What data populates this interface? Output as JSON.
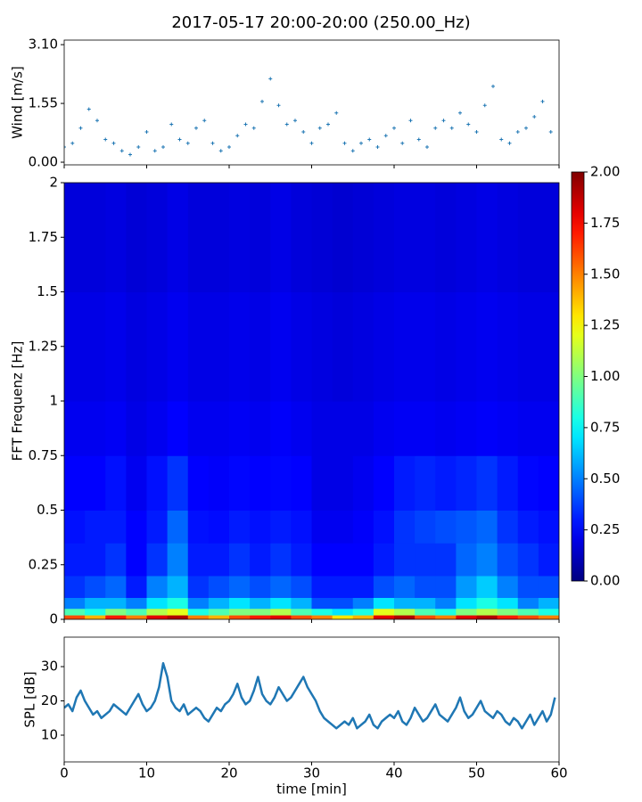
{
  "title": "2017-05-17 20:00-20:00 (250.00_Hz)",
  "chart_data": [
    {
      "type": "scatter",
      "ylabel": "Wind [m/s]",
      "color": "#1f77b4",
      "x": [
        0,
        1,
        2,
        3,
        4,
        5,
        6,
        7,
        8,
        9,
        10,
        11,
        12,
        13,
        14,
        15,
        16,
        17,
        18,
        19,
        20,
        21,
        22,
        23,
        24,
        25,
        26,
        27,
        28,
        29,
        30,
        31,
        32,
        33,
        34,
        35,
        36,
        37,
        38,
        39,
        40,
        41,
        42,
        43,
        44,
        45,
        46,
        47,
        48,
        49,
        50,
        51,
        52,
        53,
        54,
        55,
        56,
        57,
        58,
        59
      ],
      "values": [
        0.4,
        0.5,
        0.9,
        1.4,
        1.1,
        0.6,
        0.5,
        0.3,
        0.2,
        0.4,
        0.8,
        0.3,
        0.4,
        1.0,
        0.6,
        0.5,
        0.9,
        1.1,
        0.5,
        0.3,
        0.4,
        0.7,
        1.0,
        0.9,
        1.6,
        2.2,
        1.5,
        1.0,
        1.1,
        0.8,
        0.5,
        0.9,
        1.0,
        1.3,
        0.5,
        0.3,
        0.5,
        0.6,
        0.4,
        0.7,
        0.9,
        0.5,
        1.1,
        0.6,
        0.4,
        0.9,
        1.1,
        0.9,
        1.3,
        1.0,
        0.8,
        1.5,
        2.0,
        0.6,
        0.5,
        0.8,
        0.9,
        1.2,
        1.6,
        0.8
      ],
      "xlim": [
        0,
        60
      ],
      "xticks": [
        0,
        10,
        20,
        30,
        40,
        50,
        60
      ],
      "ylim": [
        -0.07,
        3.22
      ],
      "yticks": [
        {
          "value": 0,
          "label": "0.00"
        },
        {
          "value": 1.55,
          "label": "1.55"
        },
        {
          "value": 3.1,
          "label": "3.10"
        }
      ]
    },
    {
      "type": "heatmap",
      "ylabel": "FFT Frequenz [Hz]",
      "colormap": "jet",
      "x_bins": [
        0,
        2.5,
        5,
        7.5,
        10,
        12.5,
        15,
        17.5,
        20,
        22.5,
        25,
        27.5,
        30,
        32.5,
        35,
        37.5,
        40,
        42.5,
        45,
        47.5,
        50,
        52.5,
        55,
        57.5,
        60
      ],
      "y_bins": [
        0,
        0.02,
        0.05,
        0.1,
        0.2,
        0.35,
        0.5,
        0.75,
        1,
        1.5,
        2
      ],
      "values": [
        [
          1.6,
          1.4,
          1.7,
          1.5,
          1.8,
          1.9,
          1.5,
          1.4,
          1.6,
          1.7,
          1.8,
          1.6,
          1.5,
          1.3,
          1.4,
          1.8,
          1.9,
          1.6,
          1.5,
          1.8,
          1.9,
          1.7,
          1.6,
          1.5
        ],
        [
          0.9,
          0.8,
          1.0,
          0.9,
          1.1,
          1.2,
          0.8,
          0.9,
          1.0,
          1.0,
          1.1,
          0.9,
          0.8,
          0.7,
          0.8,
          1.2,
          1.1,
          0.9,
          0.8,
          1.0,
          1.1,
          1.0,
          0.9,
          0.8
        ],
        [
          0.5,
          0.6,
          0.6,
          0.5,
          0.7,
          0.8,
          0.5,
          0.6,
          0.7,
          0.6,
          0.7,
          0.6,
          0.4,
          0.4,
          0.5,
          0.7,
          0.6,
          0.6,
          0.5,
          0.7,
          0.8,
          0.7,
          0.5,
          0.6
        ],
        [
          0.35,
          0.4,
          0.45,
          0.3,
          0.5,
          0.6,
          0.35,
          0.4,
          0.45,
          0.4,
          0.45,
          0.4,
          0.3,
          0.3,
          0.3,
          0.4,
          0.45,
          0.4,
          0.4,
          0.55,
          0.65,
          0.5,
          0.4,
          0.4
        ],
        [
          0.3,
          0.3,
          0.35,
          0.25,
          0.35,
          0.5,
          0.3,
          0.3,
          0.35,
          0.3,
          0.35,
          0.3,
          0.25,
          0.25,
          0.25,
          0.3,
          0.35,
          0.35,
          0.35,
          0.45,
          0.5,
          0.4,
          0.35,
          0.3
        ],
        [
          0.28,
          0.3,
          0.3,
          0.25,
          0.3,
          0.45,
          0.28,
          0.27,
          0.3,
          0.28,
          0.3,
          0.28,
          0.22,
          0.22,
          0.24,
          0.28,
          0.35,
          0.38,
          0.4,
          0.42,
          0.45,
          0.35,
          0.3,
          0.28
        ],
        [
          0.25,
          0.25,
          0.28,
          0.22,
          0.28,
          0.35,
          0.25,
          0.24,
          0.26,
          0.25,
          0.26,
          0.25,
          0.2,
          0.2,
          0.22,
          0.25,
          0.3,
          0.32,
          0.3,
          0.32,
          0.35,
          0.3,
          0.26,
          0.25
        ],
        [
          0.22,
          0.22,
          0.23,
          0.2,
          0.22,
          0.25,
          0.22,
          0.22,
          0.23,
          0.22,
          0.24,
          0.22,
          0.2,
          0.2,
          0.2,
          0.22,
          0.23,
          0.23,
          0.22,
          0.23,
          0.24,
          0.23,
          0.22,
          0.22
        ],
        [
          0.2,
          0.2,
          0.21,
          0.19,
          0.2,
          0.22,
          0.2,
          0.2,
          0.21,
          0.2,
          0.22,
          0.2,
          0.19,
          0.18,
          0.19,
          0.2,
          0.21,
          0.21,
          0.2,
          0.21,
          0.22,
          0.21,
          0.2,
          0.2
        ],
        [
          0.18,
          0.18,
          0.19,
          0.17,
          0.18,
          0.2,
          0.18,
          0.18,
          0.19,
          0.18,
          0.2,
          0.18,
          0.17,
          0.16,
          0.17,
          0.18,
          0.19,
          0.19,
          0.18,
          0.19,
          0.2,
          0.19,
          0.18,
          0.18
        ]
      ],
      "xlim": [
        0,
        60
      ],
      "xticks": [
        0,
        10,
        20,
        30,
        40,
        50,
        60
      ],
      "ylim": [
        0,
        2
      ],
      "yticks": [
        0,
        0.25,
        0.5,
        0.75,
        1,
        1.25,
        1.5,
        1.75,
        2
      ],
      "clim": [
        0,
        2
      ],
      "cticks": [
        {
          "value": 0,
          "label": "0.00"
        },
        {
          "value": 0.25,
          "label": "0.25"
        },
        {
          "value": 0.5,
          "label": "0.50"
        },
        {
          "value": 0.75,
          "label": "0.75"
        },
        {
          "value": 1,
          "label": "1.00"
        },
        {
          "value": 1.25,
          "label": "1.25"
        },
        {
          "value": 1.5,
          "label": "1.50"
        },
        {
          "value": 1.75,
          "label": "1.75"
        },
        {
          "value": 2,
          "label": "2.00"
        }
      ]
    },
    {
      "type": "line",
      "ylabel": "SPL [dB]",
      "xlabel": "time [min]",
      "color": "#1f77b4",
      "x": [
        0,
        0.5,
        1,
        1.5,
        2,
        2.5,
        3,
        3.5,
        4,
        4.5,
        5,
        5.5,
        6,
        6.5,
        7,
        7.5,
        8,
        8.5,
        9,
        9.5,
        10,
        10.5,
        11,
        11.5,
        12,
        12.5,
        13,
        13.5,
        14,
        14.5,
        15,
        15.5,
        16,
        16.5,
        17,
        17.5,
        18,
        18.5,
        19,
        19.5,
        20,
        20.5,
        21,
        21.5,
        22,
        22.5,
        23,
        23.5,
        24,
        24.5,
        25,
        25.5,
        26,
        26.5,
        27,
        27.5,
        28,
        28.5,
        29,
        29.5,
        30,
        30.5,
        31,
        31.5,
        32,
        32.5,
        33,
        33.5,
        34,
        34.5,
        35,
        35.5,
        36,
        36.5,
        37,
        37.5,
        38,
        38.5,
        39,
        39.5,
        40,
        40.5,
        41,
        41.5,
        42,
        42.5,
        43,
        43.5,
        44,
        44.5,
        45,
        45.5,
        46,
        46.5,
        47,
        47.5,
        48,
        48.5,
        49,
        49.5,
        50,
        50.5,
        51,
        51.5,
        52,
        52.5,
        53,
        53.5,
        54,
        54.5,
        55,
        55.5,
        56,
        56.5,
        57,
        57.5,
        58,
        58.5,
        59,
        59.5
      ],
      "values": [
        18,
        19,
        17,
        21,
        23,
        20,
        18,
        16,
        17,
        15,
        16,
        17,
        19,
        18,
        17,
        16,
        18,
        20,
        22,
        19,
        17,
        18,
        20,
        24,
        31,
        27,
        20,
        18,
        17,
        19,
        16,
        17,
        18,
        17,
        15,
        14,
        16,
        18,
        17,
        19,
        20,
        22,
        25,
        21,
        19,
        20,
        23,
        27,
        22,
        20,
        19,
        21,
        24,
        22,
        20,
        21,
        23,
        25,
        27,
        24,
        22,
        20,
        17,
        15,
        14,
        13,
        12,
        13,
        14,
        13,
        15,
        12,
        13,
        14,
        16,
        13,
        12,
        14,
        15,
        16,
        15,
        17,
        14,
        13,
        15,
        18,
        16,
        14,
        15,
        17,
        19,
        16,
        15,
        14,
        16,
        18,
        21,
        17,
        15,
        16,
        18,
        20,
        17,
        16,
        15,
        17,
        16,
        14,
        13,
        15,
        14,
        12,
        14,
        16,
        13,
        15,
        17,
        14,
        16,
        21
      ],
      "xlim": [
        0,
        60
      ],
      "xticks": [
        0,
        10,
        20,
        30,
        40,
        50,
        60
      ],
      "ylim": [
        2.2,
        38.6
      ],
      "yticks": [
        10,
        20,
        30
      ]
    }
  ]
}
